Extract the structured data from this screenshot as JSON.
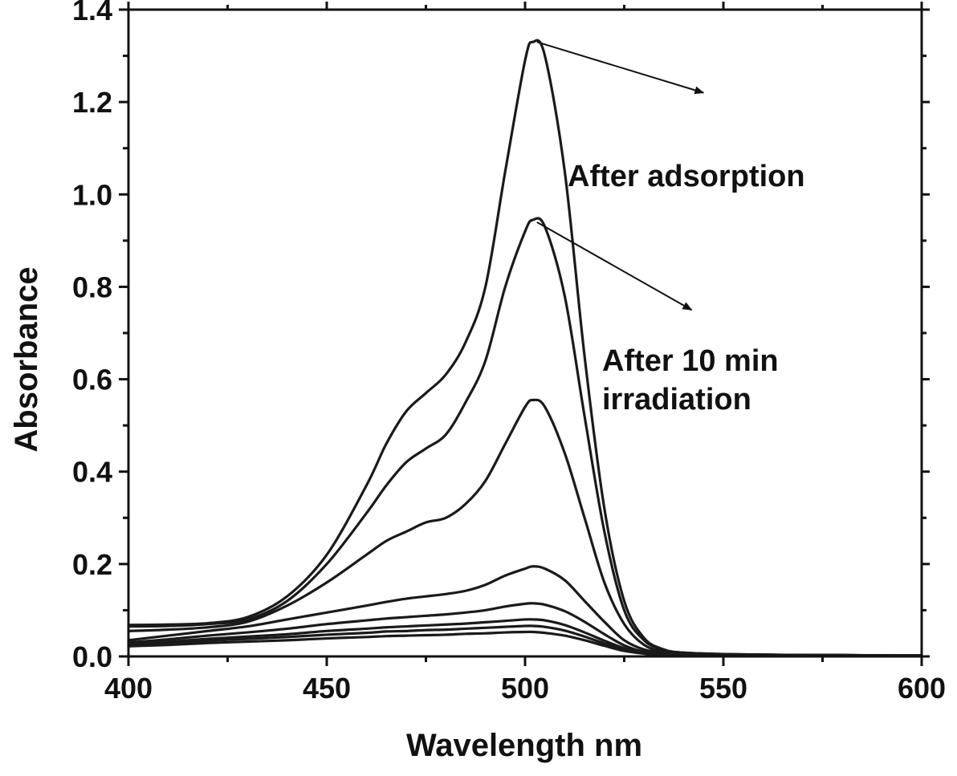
{
  "chart_data": {
    "type": "line",
    "xlabel": "Wavelength nm",
    "ylabel": "Absorbance",
    "xlim": [
      400,
      600
    ],
    "ylim": [
      0.0,
      1.4
    ],
    "x_ticks": [
      400,
      450,
      500,
      550,
      600
    ],
    "x_tick_labels": [
      "400",
      "450",
      "500",
      "550",
      "600"
    ],
    "y_ticks": [
      0.0,
      0.2,
      0.4,
      0.6,
      0.8,
      1.0,
      1.2,
      1.4
    ],
    "y_tick_labels": [
      "0.0",
      "0.2",
      "0.4",
      "0.6",
      "0.8",
      "1.0",
      "1.2",
      "1.4"
    ],
    "grid": false,
    "x": [
      400,
      410,
      420,
      430,
      440,
      450,
      460,
      465,
      470,
      475,
      480,
      485,
      490,
      495,
      500,
      502,
      505,
      510,
      515,
      520,
      525,
      530,
      535,
      540,
      550,
      560,
      570,
      580,
      590,
      600
    ],
    "series": [
      {
        "values": [
          0.068,
          0.069,
          0.072,
          0.085,
          0.13,
          0.22,
          0.37,
          0.46,
          0.53,
          0.57,
          0.61,
          0.68,
          0.8,
          1.05,
          1.29,
          1.33,
          1.3,
          1.05,
          0.65,
          0.32,
          0.12,
          0.04,
          0.015,
          0.008,
          0.005,
          0.004,
          0.003,
          0.003,
          0.002,
          0.002
        ]
      },
      {
        "values": [
          0.065,
          0.066,
          0.07,
          0.08,
          0.12,
          0.2,
          0.31,
          0.37,
          0.42,
          0.45,
          0.48,
          0.55,
          0.64,
          0.8,
          0.92,
          0.945,
          0.93,
          0.78,
          0.52,
          0.27,
          0.1,
          0.035,
          0.014,
          0.008,
          0.005,
          0.004,
          0.003,
          0.003,
          0.002,
          0.002
        ]
      },
      {
        "values": [
          0.055,
          0.058,
          0.063,
          0.075,
          0.11,
          0.16,
          0.22,
          0.25,
          0.27,
          0.29,
          0.3,
          0.33,
          0.38,
          0.46,
          0.54,
          0.555,
          0.54,
          0.44,
          0.3,
          0.16,
          0.07,
          0.025,
          0.01,
          0.006,
          0.004,
          0.003,
          0.003,
          0.002,
          0.002,
          0.002
        ]
      },
      {
        "values": [
          0.035,
          0.045,
          0.055,
          0.065,
          0.08,
          0.095,
          0.11,
          0.118,
          0.125,
          0.13,
          0.135,
          0.142,
          0.155,
          0.175,
          0.19,
          0.195,
          0.19,
          0.165,
          0.12,
          0.075,
          0.035,
          0.015,
          0.008,
          0.005,
          0.004,
          0.003,
          0.002,
          0.002,
          0.002,
          0.002
        ]
      },
      {
        "values": [
          0.03,
          0.037,
          0.045,
          0.052,
          0.06,
          0.07,
          0.078,
          0.082,
          0.085,
          0.088,
          0.091,
          0.095,
          0.1,
          0.108,
          0.114,
          0.115,
          0.112,
          0.098,
          0.075,
          0.048,
          0.024,
          0.01,
          0.006,
          0.004,
          0.003,
          0.002,
          0.002,
          0.002,
          0.002,
          0.001
        ]
      },
      {
        "values": [
          0.027,
          0.032,
          0.038,
          0.043,
          0.048,
          0.055,
          0.06,
          0.063,
          0.065,
          0.067,
          0.069,
          0.071,
          0.074,
          0.077,
          0.08,
          0.08,
          0.078,
          0.068,
          0.052,
          0.034,
          0.018,
          0.008,
          0.005,
          0.003,
          0.002,
          0.002,
          0.002,
          0.001,
          0.001,
          0.001
        ]
      },
      {
        "values": [
          0.025,
          0.029,
          0.034,
          0.038,
          0.042,
          0.047,
          0.051,
          0.054,
          0.055,
          0.057,
          0.058,
          0.06,
          0.062,
          0.064,
          0.066,
          0.066,
          0.064,
          0.056,
          0.043,
          0.028,
          0.015,
          0.007,
          0.004,
          0.003,
          0.002,
          0.002,
          0.001,
          0.001,
          0.001,
          0.001
        ]
      },
      {
        "values": [
          0.022,
          0.025,
          0.029,
          0.032,
          0.035,
          0.039,
          0.042,
          0.044,
          0.045,
          0.046,
          0.047,
          0.049,
          0.05,
          0.052,
          0.053,
          0.053,
          0.051,
          0.045,
          0.035,
          0.023,
          0.012,
          0.006,
          0.003,
          0.002,
          0.002,
          0.001,
          0.001,
          0.001,
          0.001,
          0.001
        ]
      }
    ],
    "annotations": [
      {
        "lines": [
          "After adsorption"
        ],
        "arrow_from": [
          503,
          1.33
        ],
        "arrow_to": [
          545,
          1.22
        ]
      },
      {
        "lines": [
          "After 10 min",
          "irradiation"
        ],
        "arrow_from": [
          503,
          0.94
        ],
        "arrow_to": [
          542,
          0.75
        ]
      }
    ]
  },
  "colors": {
    "line": "#1a1a1a",
    "axis": "#111111",
    "background": "#ffffff"
  }
}
